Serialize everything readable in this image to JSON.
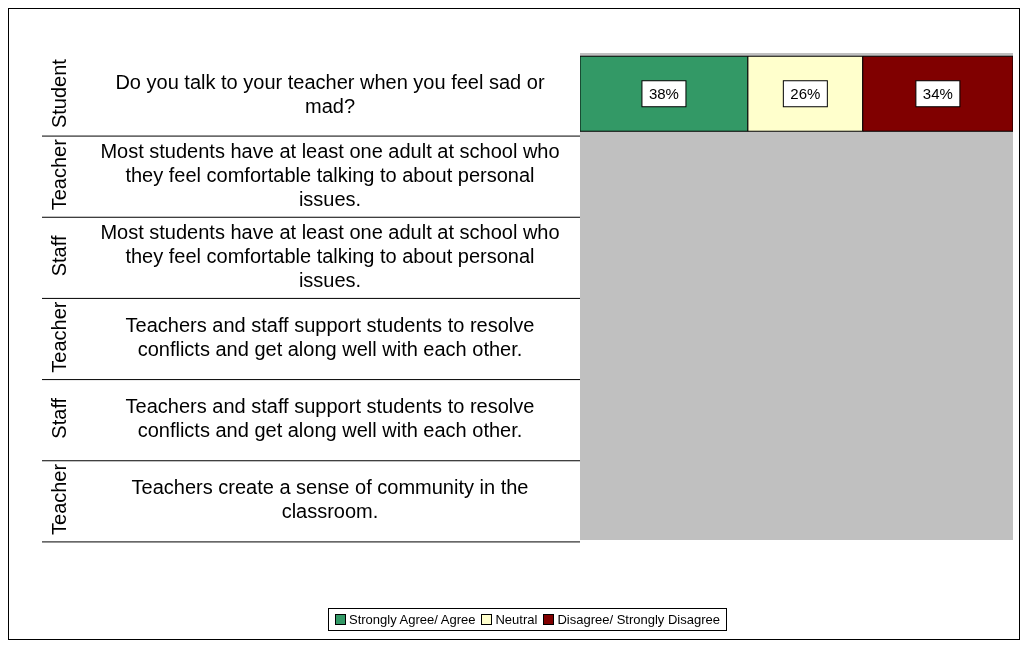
{
  "chart_data": {
    "type": "bar",
    "orientation": "horizontal",
    "stacked": true,
    "categories": [
      "Do you talk to your teacher when you feel sad or mad?",
      "Most students have at least one adult at school who they feel comfortable talking to about personal issues.",
      "Most students have at least one adult at school who they feel comfortable talking to about personal issues.",
      "Teachers and staff support students to resolve conflicts and get along well with each other.",
      "Teachers and staff support students to resolve conflicts and get along well with each other.",
      "Teachers create a sense of community in the classroom."
    ],
    "annotations": [
      "Student",
      "Teacher",
      "Staff",
      "Teacher",
      "Staff",
      "Teacher"
    ],
    "xlim": [
      0,
      98
    ],
    "series": [
      {
        "name": "Strongly Agree/ Agree",
        "color": "#339966",
        "values": [
          38,
          null,
          null,
          null,
          null,
          null
        ],
        "value_labels": [
          "38%",
          null,
          null,
          null,
          null,
          null
        ]
      },
      {
        "name": "Neutral",
        "color": "#ffffcc",
        "values": [
          26,
          null,
          null,
          null,
          null,
          null
        ],
        "value_labels": [
          "26%",
          null,
          null,
          null,
          null,
          null
        ]
      },
      {
        "name": "Disagree/ Strongly Disagree",
        "color": "#800000",
        "values": [
          34,
          null,
          null,
          null,
          null,
          null
        ],
        "value_labels": [
          "34%",
          null,
          null,
          null,
          null,
          null
        ]
      }
    ],
    "legend": "bottom"
  }
}
